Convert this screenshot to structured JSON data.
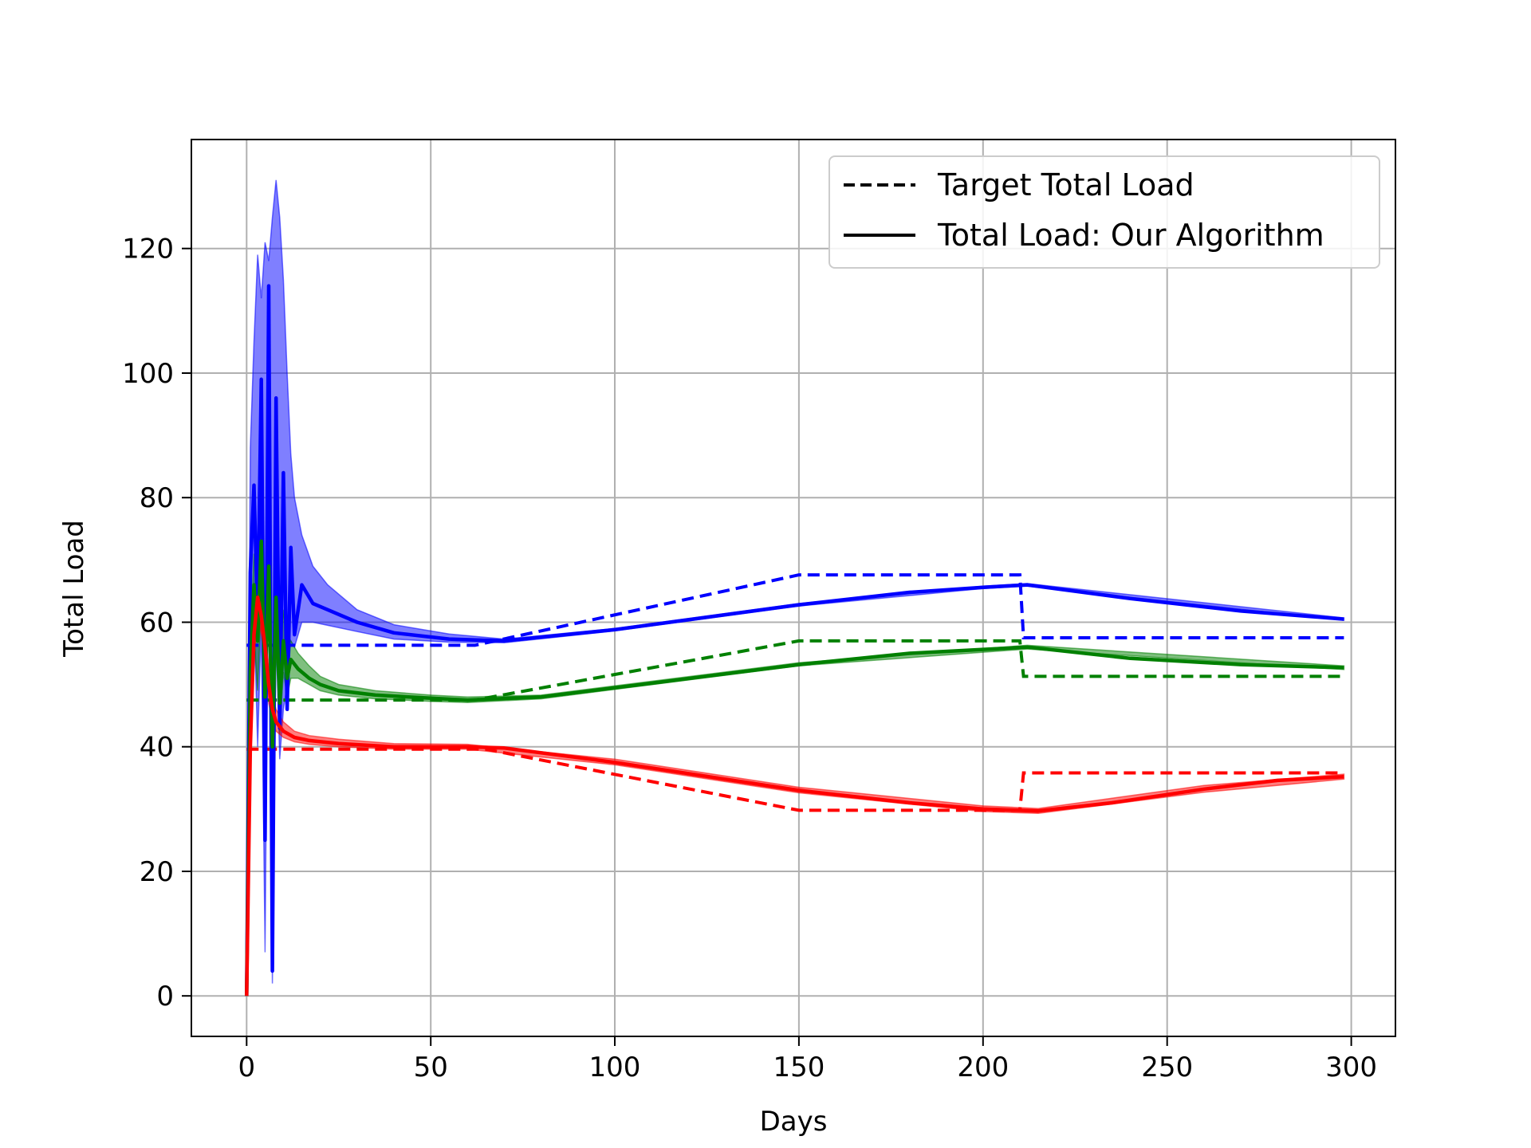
{
  "chart_data": {
    "type": "line",
    "xlabel": "Days",
    "ylabel": "Total Load",
    "xlim": [
      -15,
      312
    ],
    "ylim": [
      -6.5,
      137.5
    ],
    "xticks": [
      0,
      50,
      100,
      150,
      200,
      250,
      300
    ],
    "yticks": [
      0,
      20,
      40,
      60,
      80,
      100,
      120
    ],
    "grid": true,
    "legend_position": "top-right",
    "legend": [
      {
        "label": "Target Total Load",
        "style": "dashed"
      },
      {
        "label": "Total Load: Our Algorithm",
        "style": "solid"
      }
    ],
    "series": [
      {
        "color": "#0000ff",
        "target": [
          [
            0,
            56.3
          ],
          [
            62,
            56.3
          ],
          [
            150,
            67.6
          ],
          [
            210,
            67.6
          ],
          [
            211,
            57.5
          ],
          [
            298,
            57.5
          ]
        ],
        "load": [
          [
            0,
            0
          ],
          [
            1,
            68
          ],
          [
            2,
            82
          ],
          [
            3,
            60
          ],
          [
            4,
            99
          ],
          [
            5,
            25
          ],
          [
            6,
            114
          ],
          [
            7,
            4
          ],
          [
            8,
            96
          ],
          [
            9,
            43
          ],
          [
            10,
            84
          ],
          [
            11,
            46
          ],
          [
            12,
            72
          ],
          [
            13,
            58
          ],
          [
            15,
            66
          ],
          [
            18,
            63
          ],
          [
            22,
            62
          ],
          [
            30,
            60
          ],
          [
            40,
            58.3
          ],
          [
            55,
            57.3
          ],
          [
            70,
            57
          ],
          [
            100,
            58.8
          ],
          [
            150,
            62.8
          ],
          [
            180,
            64.8
          ],
          [
            200,
            65.6
          ],
          [
            212,
            66
          ],
          [
            240,
            63.8
          ],
          [
            270,
            61.8
          ],
          [
            298,
            60.5
          ]
        ],
        "band": [
          [
            0,
            0,
            0
          ],
          [
            1,
            55,
            88
          ],
          [
            2,
            62,
            105
          ],
          [
            3,
            40,
            119
          ],
          [
            4,
            60,
            112
          ],
          [
            5,
            7,
            121
          ],
          [
            6,
            80,
            118
          ],
          [
            7,
            2,
            125
          ],
          [
            8,
            58,
            131
          ],
          [
            9,
            38,
            125
          ],
          [
            10,
            46,
            115
          ],
          [
            11,
            50,
            100
          ],
          [
            12,
            57,
            87
          ],
          [
            13,
            56,
            80
          ],
          [
            15,
            60,
            74
          ],
          [
            18,
            60,
            69
          ],
          [
            22,
            59.5,
            66
          ],
          [
            30,
            58.5,
            62
          ],
          [
            40,
            57.3,
            59.6
          ],
          [
            55,
            56.8,
            58.1
          ],
          [
            70,
            56.7,
            57.3
          ],
          [
            100,
            58.6,
            59
          ],
          [
            150,
            62.6,
            63
          ],
          [
            200,
            65.4,
            65.8
          ],
          [
            212,
            65.8,
            66.2
          ],
          [
            298,
            60.3,
            60.7
          ]
        ]
      },
      {
        "color": "#008000",
        "target": [
          [
            0,
            47.5
          ],
          [
            62,
            47.5
          ],
          [
            150,
            57
          ],
          [
            210,
            57
          ],
          [
            211,
            51.3
          ],
          [
            298,
            51.3
          ]
        ],
        "load": [
          [
            0,
            0
          ],
          [
            1,
            52
          ],
          [
            2,
            66
          ],
          [
            3,
            57
          ],
          [
            4,
            73
          ],
          [
            5,
            48
          ],
          [
            6,
            69
          ],
          [
            7,
            40
          ],
          [
            8,
            64
          ],
          [
            9,
            47
          ],
          [
            10,
            57
          ],
          [
            11,
            51
          ],
          [
            12,
            54
          ],
          [
            14,
            52.5
          ],
          [
            17,
            51
          ],
          [
            20,
            50
          ],
          [
            25,
            49
          ],
          [
            35,
            48.3
          ],
          [
            50,
            47.8
          ],
          [
            60,
            47.5
          ],
          [
            80,
            48
          ],
          [
            110,
            50.2
          ],
          [
            150,
            53.2
          ],
          [
            180,
            55
          ],
          [
            212,
            56
          ],
          [
            240,
            54.2
          ],
          [
            270,
            53.2
          ],
          [
            298,
            52.7
          ]
        ],
        "band": [
          [
            0,
            0,
            0
          ],
          [
            1,
            46,
            57
          ],
          [
            2,
            58,
            71
          ],
          [
            3,
            49,
            65
          ],
          [
            4,
            63,
            80
          ],
          [
            5,
            40,
            57
          ],
          [
            6,
            62,
            83
          ],
          [
            7,
            33,
            50
          ],
          [
            8,
            57,
            70
          ],
          [
            9,
            42,
            54
          ],
          [
            10,
            52,
            62
          ],
          [
            11,
            48,
            56
          ],
          [
            12,
            51,
            57
          ],
          [
            14,
            51,
            55
          ],
          [
            17,
            50,
            53
          ],
          [
            20,
            49,
            51.3
          ],
          [
            25,
            48.3,
            50
          ],
          [
            35,
            47.7,
            49
          ],
          [
            50,
            47.3,
            48.3
          ],
          [
            60,
            47.1,
            48
          ],
          [
            80,
            47.7,
            48.3
          ],
          [
            150,
            53,
            53.5
          ],
          [
            212,
            55.7,
            56.3
          ],
          [
            298,
            52.4,
            53
          ]
        ]
      },
      {
        "color": "#ff0000",
        "target": [
          [
            0,
            39.6
          ],
          [
            65,
            39.6
          ],
          [
            150,
            29.8
          ],
          [
            210,
            29.8
          ],
          [
            211,
            35.8
          ],
          [
            298,
            35.8
          ]
        ],
        "load": [
          [
            0,
            0
          ],
          [
            1,
            40
          ],
          [
            2,
            58
          ],
          [
            3,
            64
          ],
          [
            4,
            61
          ],
          [
            5,
            56
          ],
          [
            6,
            50
          ],
          [
            7,
            46
          ],
          [
            8,
            44
          ],
          [
            10,
            42.5
          ],
          [
            13,
            41.5
          ],
          [
            17,
            41
          ],
          [
            25,
            40.5
          ],
          [
            40,
            40
          ],
          [
            60,
            40
          ],
          [
            70,
            39.8
          ],
          [
            100,
            37.5
          ],
          [
            150,
            33
          ],
          [
            180,
            31
          ],
          [
            200,
            30
          ],
          [
            215,
            29.7
          ],
          [
            235,
            31
          ],
          [
            260,
            33.2
          ],
          [
            280,
            34.6
          ],
          [
            298,
            35.2
          ]
        ],
        "band": [
          [
            0,
            0,
            0
          ],
          [
            1,
            36,
            44
          ],
          [
            2,
            54,
            62
          ],
          [
            3,
            61,
            67
          ],
          [
            4,
            58,
            64
          ],
          [
            5,
            53,
            59
          ],
          [
            6,
            47,
            53
          ],
          [
            7,
            44,
            48.5
          ],
          [
            8,
            42.5,
            46
          ],
          [
            10,
            41.5,
            44
          ],
          [
            13,
            40.8,
            42.5
          ],
          [
            17,
            40.4,
            41.8
          ],
          [
            25,
            40,
            41.2
          ],
          [
            40,
            39.6,
            40.5
          ],
          [
            60,
            39.6,
            40.4
          ],
          [
            100,
            37.1,
            38
          ],
          [
            150,
            32.6,
            33.5
          ],
          [
            200,
            29.6,
            30.5
          ],
          [
            215,
            29.3,
            30.1
          ],
          [
            260,
            32.7,
            33.8
          ],
          [
            298,
            34.8,
            35.6
          ]
        ]
      }
    ]
  }
}
